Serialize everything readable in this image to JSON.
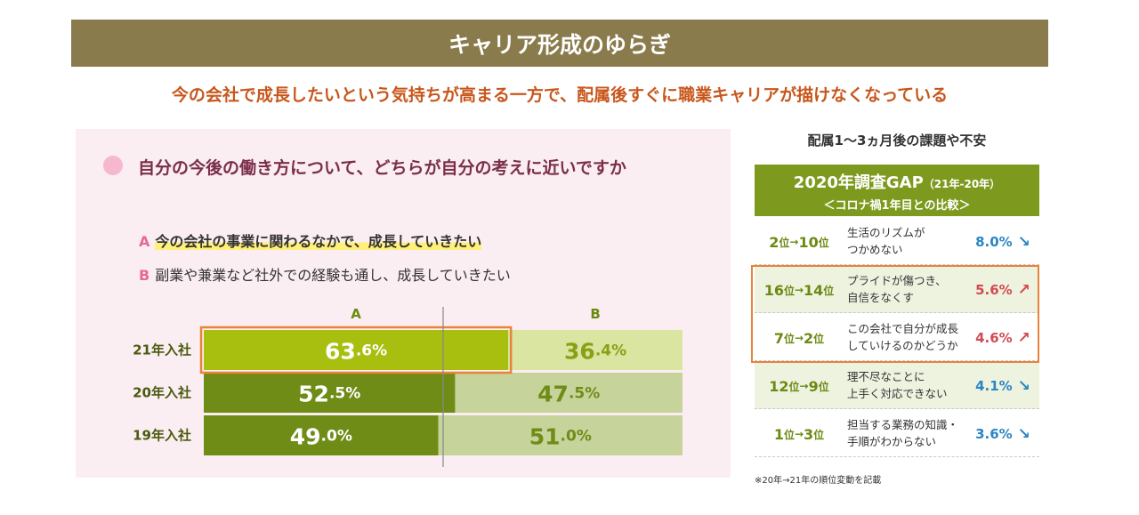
{
  "title": "キャリア形成のゆらぎ",
  "subtitle": "今の会社で成長したいという気持ちが高まる一方で、配属後すぐに職業キャリアが描けなくなっている",
  "question": "自分の今後の働き方について、どちらが自分の考えに近いですか",
  "options": {
    "a": {
      "letter": "A",
      "text": "今の会社の事業に関わるなかで、成長していきたい"
    },
    "b": {
      "letter": "B",
      "text": "副業や兼業など社外での経験も通し、成長していきたい"
    }
  },
  "chart_data": {
    "type": "bar",
    "orientation": "horizontal-stacked-100",
    "categories": [
      "21年入社",
      "20年入社",
      "19年入社"
    ],
    "series": [
      {
        "name": "A",
        "values": [
          63.6,
          52.5,
          49.0
        ]
      },
      {
        "name": "B",
        "values": [
          36.4,
          47.5,
          51.0
        ]
      }
    ],
    "labels": {
      "A": [
        "63.6%",
        "52.5%",
        "49.0%"
      ],
      "B": [
        "36.4%",
        "47.5%",
        "51.0%"
      ]
    },
    "xlim": [
      0,
      100
    ],
    "highlight": "21年入社 A",
    "colors": {
      "A_highlight": "#a8bf10",
      "B_highlight": "#d9e5a0",
      "A": "#6f8c17",
      "B": "#c6d39a",
      "highlight_border": "#e8833a"
    }
  },
  "right_panel": {
    "heading": "配属1〜3ヵ月後の課題や不安",
    "gap_title": "2020年調査GAP",
    "gap_sub": "（21年-20年）",
    "gap_note": "＜コロナ禍1年目との比較＞",
    "rows": [
      {
        "from": "2",
        "to": "10",
        "desc1": "生活のリズムが",
        "desc2": "つかめない",
        "value": "8.0%",
        "arrow": "↘",
        "dir": "down"
      },
      {
        "from": "16",
        "to": "14",
        "desc1": "プライドが傷つき、",
        "desc2": "自信をなくす",
        "value": "5.6%",
        "arrow": "↗",
        "dir": "up"
      },
      {
        "from": "7",
        "to": "2",
        "desc1": "この会社で自分が成長",
        "desc2": "していけるのかどうか",
        "value": "4.6%",
        "arrow": "↗",
        "dir": "up"
      },
      {
        "from": "12",
        "to": "9",
        "desc1": "理不尽なことに",
        "desc2": "上手く対応できない",
        "value": "4.1%",
        "arrow": "↘",
        "dir": "down"
      },
      {
        "from": "1",
        "to": "3",
        "desc1": "担当する業務の知識・",
        "desc2": "手順がわからない",
        "value": "3.6%",
        "arrow": "↘",
        "dir": "down"
      }
    ],
    "rank_suffix": "位",
    "rank_arrow": "→",
    "footnote": "※20年→21年の順位変動を記載"
  }
}
